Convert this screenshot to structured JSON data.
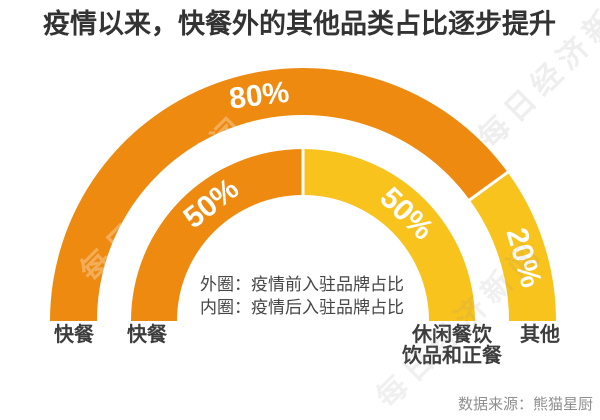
{
  "title": "疫情以来，快餐外的其他品类占比逐步提升",
  "source": "数据来源：熊猫星厨",
  "watermark": "每日经济新闻",
  "colors": {
    "orange": "#EE8A10",
    "yellow": "#F9C31D",
    "title_text": "#333333",
    "category_text": "#3D3D3D",
    "legend_text": "#464646",
    "source_text": "#8F8F8F",
    "background": "#FFFFFF"
  },
  "chart_data": {
    "type": "pie",
    "variant": "concentric-half-donut",
    "unit": "%",
    "legend_position": "center-inside",
    "rings": [
      {
        "id": "outer",
        "legend": "外圈：疫情前入驻品牌占比",
        "segments": [
          {
            "category": "快餐",
            "value": 80,
            "label": "80%",
            "color": "#EE8A10",
            "label_angle": 101,
            "label_rotation": -7
          },
          {
            "category": "其他",
            "value": 20,
            "label": "20%",
            "color": "#F9C31D",
            "label_angle": 16
          }
        ]
      },
      {
        "id": "inner",
        "legend": "内圈：疫情后入驻品牌占比",
        "segments": [
          {
            "category": "快餐",
            "value": 50,
            "label": "50%",
            "color": "#EE8A10",
            "label_angle": 128
          },
          {
            "category": "休闲餐饮饮品和正餐",
            "value": 50,
            "label": "50%",
            "color": "#F9C31D",
            "label_angle": 46
          }
        ]
      }
    ],
    "bottom_labels": [
      {
        "lines": [
          "快餐"
        ]
      },
      {
        "lines": [
          "快餐"
        ]
      },
      {
        "lines": [
          "休闲餐饮",
          "饮品和正餐"
        ]
      },
      {
        "lines": [
          "其他"
        ]
      }
    ]
  }
}
